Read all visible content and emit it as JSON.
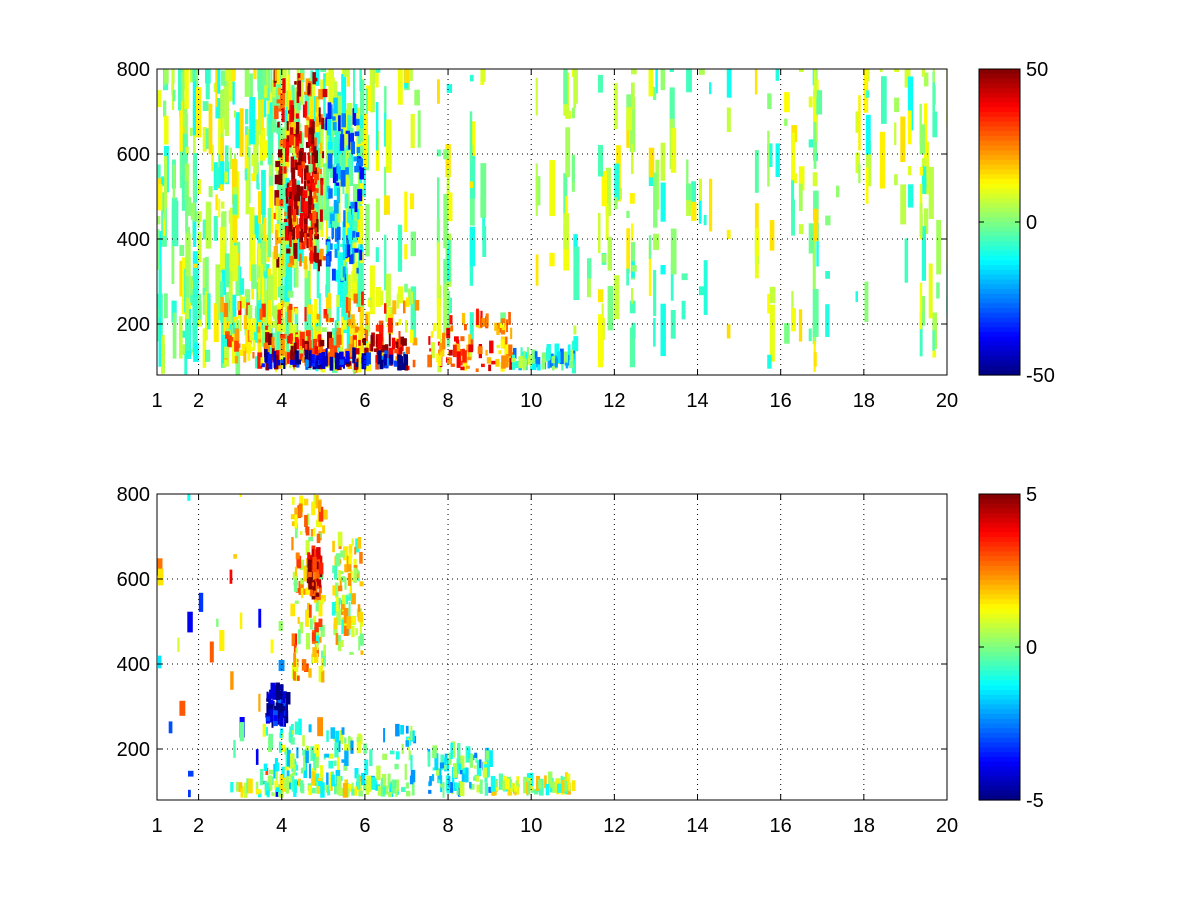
{
  "chart_data": [
    {
      "type": "heatmap",
      "title": "",
      "xlabel": "",
      "ylabel": "",
      "xlim": [
        1,
        20
      ],
      "ylim": [
        80,
        800
      ],
      "xticks": [
        "1",
        "2",
        "4",
        "6",
        "8",
        "10",
        "12",
        "14",
        "16",
        "18",
        "20"
      ],
      "yticks": [
        "200",
        "400",
        "600",
        "800"
      ],
      "grid": true,
      "colorbar": {
        "min": -50,
        "max": 50,
        "ticks": [
          "50",
          "0",
          "-50"
        ],
        "colormap": "jet"
      },
      "features": [
        {
          "x": [
            3.8,
            5.0
          ],
          "y": [
            320,
            780
          ],
          "value": 35
        },
        {
          "x": [
            4.1,
            4.8
          ],
          "y": [
            380,
            640
          ],
          "value": 45
        },
        {
          "x": [
            5.0,
            5.9
          ],
          "y": [
            290,
            700
          ],
          "value": -20
        },
        {
          "x": [
            2.5,
            7.2
          ],
          "y": [
            85,
            250
          ],
          "value": 20
        },
        {
          "x": [
            3.5,
            7.0
          ],
          "y": [
            90,
            160
          ],
          "value": 40
        },
        {
          "x": [
            3.5,
            7.0
          ],
          "y": [
            90,
            110
          ],
          "value": -40
        },
        {
          "x": [
            7.5,
            9.5
          ],
          "y": [
            85,
            200
          ],
          "value": 25
        },
        {
          "x": [
            9.5,
            11.0
          ],
          "y": [
            90,
            120
          ],
          "value": -10
        }
      ],
      "background": "scattered vertical streaks of small values (-10 to 15) across x 1 to 20"
    },
    {
      "type": "heatmap",
      "title": "",
      "xlabel": "",
      "ylabel": "",
      "xlim": [
        1,
        20
      ],
      "ylim": [
        80,
        800
      ],
      "xticks": [
        "1",
        "2",
        "4",
        "6",
        "8",
        "10",
        "12",
        "14",
        "16",
        "18",
        "20"
      ],
      "yticks": [
        "200",
        "400",
        "600",
        "800"
      ],
      "grid": true,
      "colorbar": {
        "min": -5,
        "max": 5,
        "ticks": [
          "5",
          "0",
          "-5"
        ],
        "colormap": "jet"
      },
      "features": [
        {
          "x": [
            4.2,
            5.0
          ],
          "y": [
            350,
            780
          ],
          "value": 1.5
        },
        {
          "x": [
            4.6,
            4.9
          ],
          "y": [
            550,
            650
          ],
          "value": 4
        },
        {
          "x": [
            5.2,
            5.9
          ],
          "y": [
            420,
            680
          ],
          "value": 0.8
        },
        {
          "x": [
            3.5,
            7.2
          ],
          "y": [
            85,
            240
          ],
          "value": -0.5
        },
        {
          "x": [
            3.6,
            4.1
          ],
          "y": [
            250,
            330
          ],
          "value": -4.5
        },
        {
          "x": [
            2.8,
            7.0
          ],
          "y": [
            85,
            115
          ],
          "value": 0.2
        },
        {
          "x": [
            7.5,
            9.0
          ],
          "y": [
            85,
            180
          ],
          "value": -1
        },
        {
          "x": [
            9.0,
            11.0
          ],
          "y": [
            90,
            110
          ],
          "value": 0.5
        }
      ],
      "background": "mostly empty (white) outside the low-x region"
    }
  ]
}
